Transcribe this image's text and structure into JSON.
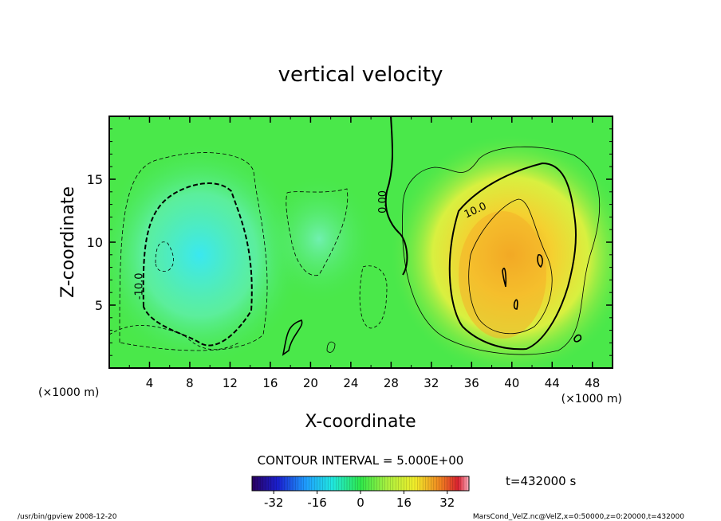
{
  "chart_data": {
    "type": "heatmap",
    "title": "vertical velocity",
    "xlabel": "X-coordinate",
    "ylabel": "Z-coordinate",
    "x_unit_left": "(×1000 m)",
    "x_unit_right": "(×1000 m)",
    "xlim": [
      0,
      50
    ],
    "ylim": [
      0,
      20
    ],
    "xticks": [
      "4",
      "8",
      "12",
      "16",
      "20",
      "24",
      "28",
      "32",
      "36",
      "40",
      "44",
      "48"
    ],
    "yticks": [
      "5",
      "10",
      "15"
    ],
    "xtick_values": [
      4,
      8,
      12,
      16,
      20,
      24,
      28,
      32,
      36,
      40,
      44,
      48
    ],
    "ytick_values": [
      5,
      10,
      15
    ],
    "contour_interval_text": "CONTOUR INTERVAL = 5.000E+00",
    "contour_labels": [
      {
        "text": "-10.0",
        "x": 3.3,
        "z": 6.5
      },
      {
        "text": "0.00",
        "x": 27.5,
        "z": 13.2
      },
      {
        "text": "10.0",
        "x": 36.5,
        "z": 12.3
      }
    ],
    "colorbar": {
      "vmin": -40,
      "vmax": 40,
      "ticks": [
        "-32",
        "-16",
        "0",
        "16",
        "32"
      ],
      "tick_values": [
        -32,
        -16,
        0,
        16,
        32
      ]
    },
    "features": [
      {
        "kind": "downdraft",
        "x": 9.5,
        "z": 8.0,
        "min": -20
      },
      {
        "kind": "updraft",
        "x": 40,
        "z": 7.5,
        "max": 30
      }
    ],
    "time_label": "t=432000 s"
  },
  "footer": {
    "left": "/usr/bin/gpview   2008-12-20",
    "right": "MarsCond_VelZ.nc@VelZ,x=0:50000,z=0:20000,t=432000"
  }
}
